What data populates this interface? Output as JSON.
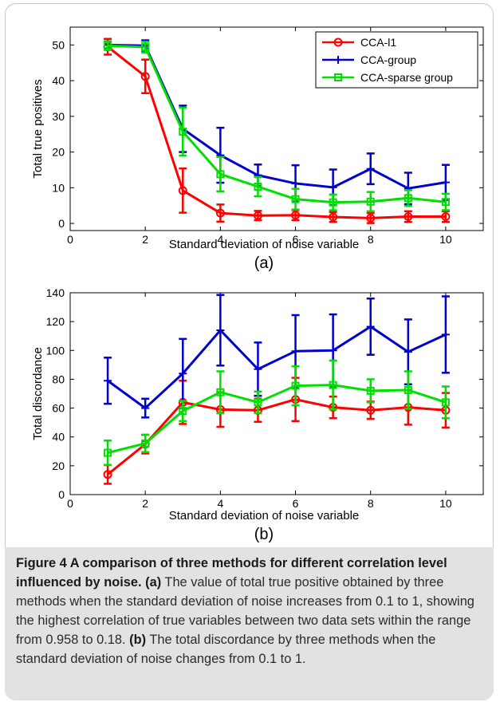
{
  "chart_data": [
    {
      "type": "line",
      "panel_label": "(a)",
      "xlabel": "Standard deviation of noise variable",
      "ylabel": "Total true positives",
      "xlim": [
        0,
        11
      ],
      "ylim": [
        -2,
        55
      ],
      "xticks": [
        0,
        2,
        4,
        6,
        8,
        10
      ],
      "yticks": [
        0,
        10,
        20,
        30,
        40,
        50
      ],
      "legend_position": "top-right",
      "x": [
        1,
        2,
        3,
        4,
        5,
        6,
        7,
        8,
        9,
        10
      ],
      "series": [
        {
          "name": "CCA-l1",
          "color": "#ff0000",
          "marker": "circle",
          "values": [
            49.5,
            41.2,
            9.2,
            2.9,
            2.2,
            2.3,
            1.8,
            1.5,
            1.9,
            1.9
          ],
          "err": [
            2.2,
            4.7,
            6.2,
            2.4,
            1.3,
            1.4,
            1.4,
            1.4,
            1.5,
            1.5
          ]
        },
        {
          "name": "CCA-group",
          "color": "#0000cc",
          "marker": "plus",
          "values": [
            50,
            49.8,
            26.5,
            19.1,
            13.5,
            11.2,
            10.1,
            15.3,
            9.8,
            11.5
          ],
          "err": [
            1.0,
            1.5,
            6.5,
            7.7,
            3.0,
            5.1,
            5.0,
            4.3,
            4.4,
            4.9
          ]
        },
        {
          "name": "CCA-sparse group",
          "color": "#00e000",
          "marker": "square",
          "values": [
            49.8,
            49.4,
            25.7,
            13.8,
            10.3,
            6.8,
            5.9,
            6.1,
            7.1,
            6.0
          ],
          "err": [
            1.2,
            1.5,
            6.7,
            4.8,
            2.7,
            2.9,
            2.2,
            2.7,
            2.2,
            2.3
          ]
        }
      ]
    },
    {
      "type": "line",
      "panel_label": "(b)",
      "xlabel": "Standard deviation of noise variable",
      "ylabel": "Total discordance",
      "xlim": [
        0,
        11
      ],
      "ylim": [
        0,
        140
      ],
      "xticks": [
        0,
        2,
        4,
        6,
        8,
        10
      ],
      "yticks": [
        0,
        20,
        40,
        60,
        80,
        100,
        120,
        140
      ],
      "x": [
        1,
        2,
        3,
        4,
        5,
        6,
        7,
        8,
        9,
        10
      ],
      "series": [
        {
          "name": "CCA-l1",
          "color": "#ff0000",
          "marker": "circle",
          "values": [
            14,
            35,
            64,
            59,
            58.5,
            66,
            60.5,
            58.5,
            60.5,
            58.5
          ],
          "err": [
            6.5,
            6.5,
            15,
            12,
            8,
            15,
            7.5,
            6,
            12,
            12
          ]
        },
        {
          "name": "CCA-group",
          "color": "#0000cc",
          "marker": "plus",
          "values": [
            79,
            60,
            84,
            114,
            87,
            99.5,
            100,
            116.5,
            99,
            111
          ],
          "err": [
            16,
            6.5,
            24,
            24.5,
            18.5,
            25,
            25,
            19.5,
            22.5,
            26.5
          ]
        },
        {
          "name": "CCA-sparse group",
          "color": "#00e000",
          "marker": "square",
          "values": [
            29,
            35.5,
            58,
            71,
            64,
            75.5,
            76,
            72,
            72.5,
            64
          ],
          "err": [
            8.5,
            6,
            7,
            14.5,
            7.5,
            13.5,
            17,
            8,
            13,
            11
          ]
        }
      ]
    }
  ],
  "caption": {
    "title": "Figure 4 A comparison of three methods for different correlation level influenced by noise.",
    "a_tag": "(a)",
    "a_text": " The value of total true positive obtained by three methods when the standard deviation of noise increases from 0.1 to 1, showing the highest correlation of true variables between two data sets within the range from 0.958 to 0.18.",
    "b_tag": "(b)",
    "b_text": " The total discordance by three methods when the standard deviation of noise changes from 0.1 to 1."
  }
}
